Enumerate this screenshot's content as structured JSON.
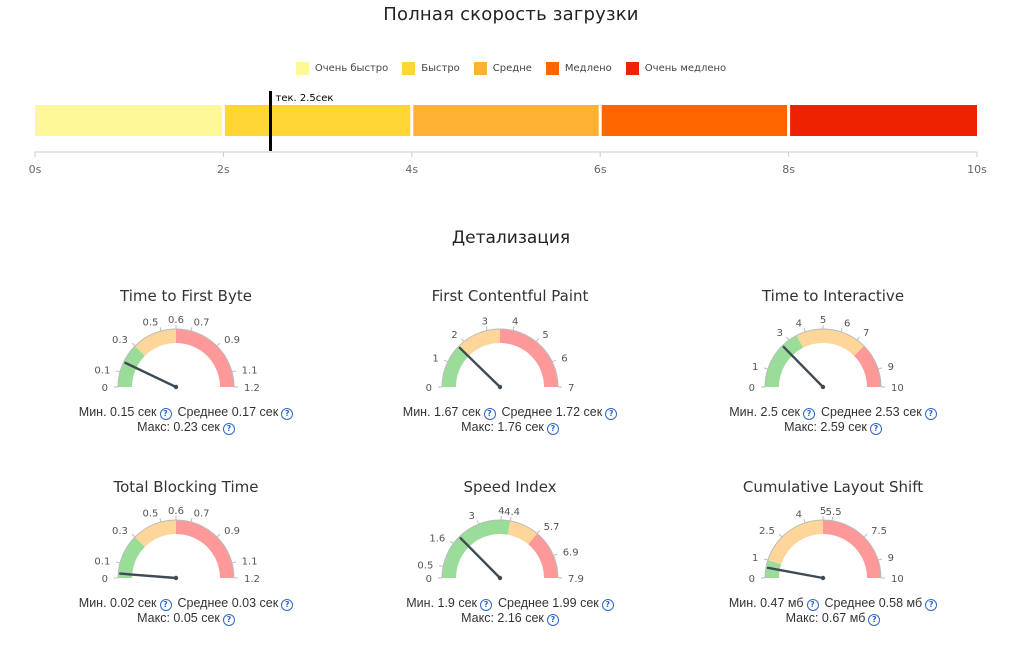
{
  "speed_section": {
    "title": "Полная скорость загрузки",
    "legend": [
      {
        "label": "Очень быстро",
        "color": "#fff899"
      },
      {
        "label": "Быстро",
        "color": "#ffd633"
      },
      {
        "label": "Средне",
        "color": "#ffb133"
      },
      {
        "label": "Медлено",
        "color": "#ff6600"
      },
      {
        "label": "Очень медлено",
        "color": "#ee2200"
      }
    ]
  },
  "detail_section": {
    "title": "Детализация"
  },
  "chart_data": [
    {
      "type": "bar",
      "title": "Полная скорость загрузки",
      "orientation": "horizontal",
      "segments": [
        {
          "name": "Очень быстро",
          "from": 0,
          "to": 2,
          "color": "#fff899"
        },
        {
          "name": "Быстро",
          "from": 2,
          "to": 4,
          "color": "#ffd633"
        },
        {
          "name": "Средне",
          "from": 4,
          "to": 6,
          "color": "#ffb133"
        },
        {
          "name": "Медлено",
          "from": 6,
          "to": 8,
          "color": "#ff6600"
        },
        {
          "name": "Очень медлено",
          "from": 8,
          "to": 10,
          "color": "#ee2200"
        }
      ],
      "marker": {
        "value": 2.5,
        "label": "тек. 2.5сек"
      },
      "xlim": [
        0,
        10
      ],
      "ticks": [
        "0s",
        "2s",
        "4s",
        "6s",
        "8s",
        "10s"
      ],
      "tick_values": [
        0,
        2,
        4,
        6,
        8,
        10
      ],
      "legend_position": "top"
    },
    {
      "type": "gauge",
      "title": "Time to First Byte",
      "min": 0,
      "max": 1.2,
      "value": 0.17,
      "bands": [
        {
          "from": 0,
          "to": 0.3,
          "color": "#99dd99"
        },
        {
          "from": 0.3,
          "to": 0.6,
          "color": "#ffd699"
        },
        {
          "from": 0.6,
          "to": 1.2,
          "color": "#ff9999"
        }
      ],
      "ticks": [
        {
          "value": 0,
          "label": "0"
        },
        {
          "value": 0.1,
          "label": "0.1"
        },
        {
          "value": 0.3,
          "label": "0.3"
        },
        {
          "value": 0.5,
          "label": "0.5"
        },
        {
          "value": 0.6,
          "label": "0.6"
        },
        {
          "value": 0.7,
          "label": "0.7"
        },
        {
          "value": 0.9,
          "label": "0.9"
        },
        {
          "value": 1.1,
          "label": "1.1"
        },
        {
          "value": 1.2,
          "label": "1.2"
        }
      ],
      "stats": {
        "min": "Мин. 0.15 сек",
        "avg": "Среднее 0.17 сек",
        "max": "Макс: 0.23 сек"
      }
    },
    {
      "type": "gauge",
      "title": "First Contentful Paint",
      "min": 0,
      "max": 7,
      "value": 1.72,
      "bands": [
        {
          "from": 0,
          "to": 1.7,
          "color": "#99dd99"
        },
        {
          "from": 1.7,
          "to": 3.5,
          "color": "#ffd699"
        },
        {
          "from": 3.5,
          "to": 7,
          "color": "#ff9999"
        }
      ],
      "ticks": [
        {
          "value": 0,
          "label": "0"
        },
        {
          "value": 1,
          "label": "1"
        },
        {
          "value": 2,
          "label": "2"
        },
        {
          "value": 3,
          "label": "3"
        },
        {
          "value": 4,
          "label": "4"
        },
        {
          "value": 5,
          "label": "5"
        },
        {
          "value": 6,
          "label": "6"
        },
        {
          "value": 7,
          "label": "7"
        }
      ],
      "stats": {
        "min": "Мин. 1.67 сек",
        "avg": "Среднее 1.72 сек",
        "max": "Макс: 1.76 сек"
      }
    },
    {
      "type": "gauge",
      "title": "Time to Interactive",
      "min": 0,
      "max": 10,
      "value": 2.53,
      "bands": [
        {
          "from": 0,
          "to": 3.5,
          "color": "#99dd99"
        },
        {
          "from": 3.5,
          "to": 7.5,
          "color": "#ffd699"
        },
        {
          "from": 7.5,
          "to": 10,
          "color": "#ff9999"
        }
      ],
      "ticks": [
        {
          "value": 0,
          "label": "0"
        },
        {
          "value": 1,
          "label": "1"
        },
        {
          "value": 3,
          "label": "3"
        },
        {
          "value": 4,
          "label": "4"
        },
        {
          "value": 5,
          "label": "5"
        },
        {
          "value": 6,
          "label": "6"
        },
        {
          "value": 7,
          "label": "7"
        },
        {
          "value": 9,
          "label": "9"
        },
        {
          "value": 10,
          "label": "10"
        }
      ],
      "stats": {
        "min": "Мин. 2.5 сек",
        "avg": "Среднее 2.53 сек",
        "max": "Макс: 2.59 сек"
      }
    },
    {
      "type": "gauge",
      "title": "Total Blocking Time",
      "min": 0,
      "max": 1.2,
      "value": 0.03,
      "bands": [
        {
          "from": 0,
          "to": 0.3,
          "color": "#99dd99"
        },
        {
          "from": 0.3,
          "to": 0.6,
          "color": "#ffd699"
        },
        {
          "from": 0.6,
          "to": 1.2,
          "color": "#ff9999"
        }
      ],
      "ticks": [
        {
          "value": 0,
          "label": "0"
        },
        {
          "value": 0.1,
          "label": "0.1"
        },
        {
          "value": 0.3,
          "label": "0.3"
        },
        {
          "value": 0.5,
          "label": "0.5"
        },
        {
          "value": 0.6,
          "label": "0.6"
        },
        {
          "value": 0.7,
          "label": "0.7"
        },
        {
          "value": 0.9,
          "label": "0.9"
        },
        {
          "value": 1.1,
          "label": "1.1"
        },
        {
          "value": 1.2,
          "label": "1.2"
        }
      ],
      "stats": {
        "min": "Мин. 0.02 сек",
        "avg": "Среднее 0.03 сек",
        "max": "Макс: 0.05 сек"
      }
    },
    {
      "type": "gauge",
      "title": "Speed Index",
      "min": 0,
      "max": 7.9,
      "value": 1.99,
      "bands": [
        {
          "from": 0,
          "to": 4.4,
          "color": "#99dd99"
        },
        {
          "from": 4.4,
          "to": 5.7,
          "color": "#ffd699"
        },
        {
          "from": 5.7,
          "to": 7.9,
          "color": "#ff9999"
        }
      ],
      "ticks": [
        {
          "value": 0,
          "label": "0"
        },
        {
          "value": 0.5,
          "label": "0.5"
        },
        {
          "value": 1.6,
          "label": "1.6"
        },
        {
          "value": 3,
          "label": "3"
        },
        {
          "value": 4,
          "label": "4"
        },
        {
          "value": 4.4,
          "label": "4.4"
        },
        {
          "value": 5.7,
          "label": "5.7"
        },
        {
          "value": 6.9,
          "label": "6.9"
        },
        {
          "value": 7.9,
          "label": "7.9"
        }
      ],
      "stats": {
        "min": "Мин. 1.9 сек",
        "avg": "Среднее 1.99 сек",
        "max": "Макс: 2.16 сек"
      }
    },
    {
      "type": "gauge",
      "title": "Cumulative Layout Shift",
      "min": 0,
      "max": 10,
      "value": 0.58,
      "bands": [
        {
          "from": 0,
          "to": 1,
          "color": "#99dd99"
        },
        {
          "from": 1,
          "to": 5,
          "color": "#ffd699"
        },
        {
          "from": 5,
          "to": 10,
          "color": "#ff9999"
        }
      ],
      "ticks": [
        {
          "value": 0,
          "label": "0"
        },
        {
          "value": 1,
          "label": "1"
        },
        {
          "value": 2.5,
          "label": "2.5"
        },
        {
          "value": 4,
          "label": "4"
        },
        {
          "value": 5,
          "label": "5"
        },
        {
          "value": 5.5,
          "label": "5.5"
        },
        {
          "value": 7.5,
          "label": "7.5"
        },
        {
          "value": 9,
          "label": "9"
        },
        {
          "value": 10,
          "label": "10"
        }
      ],
      "stats": {
        "min": "Мин. 0.47 мб",
        "avg": "Среднее 0.58 мб",
        "max": "Макс: 0.67 мб"
      }
    }
  ]
}
